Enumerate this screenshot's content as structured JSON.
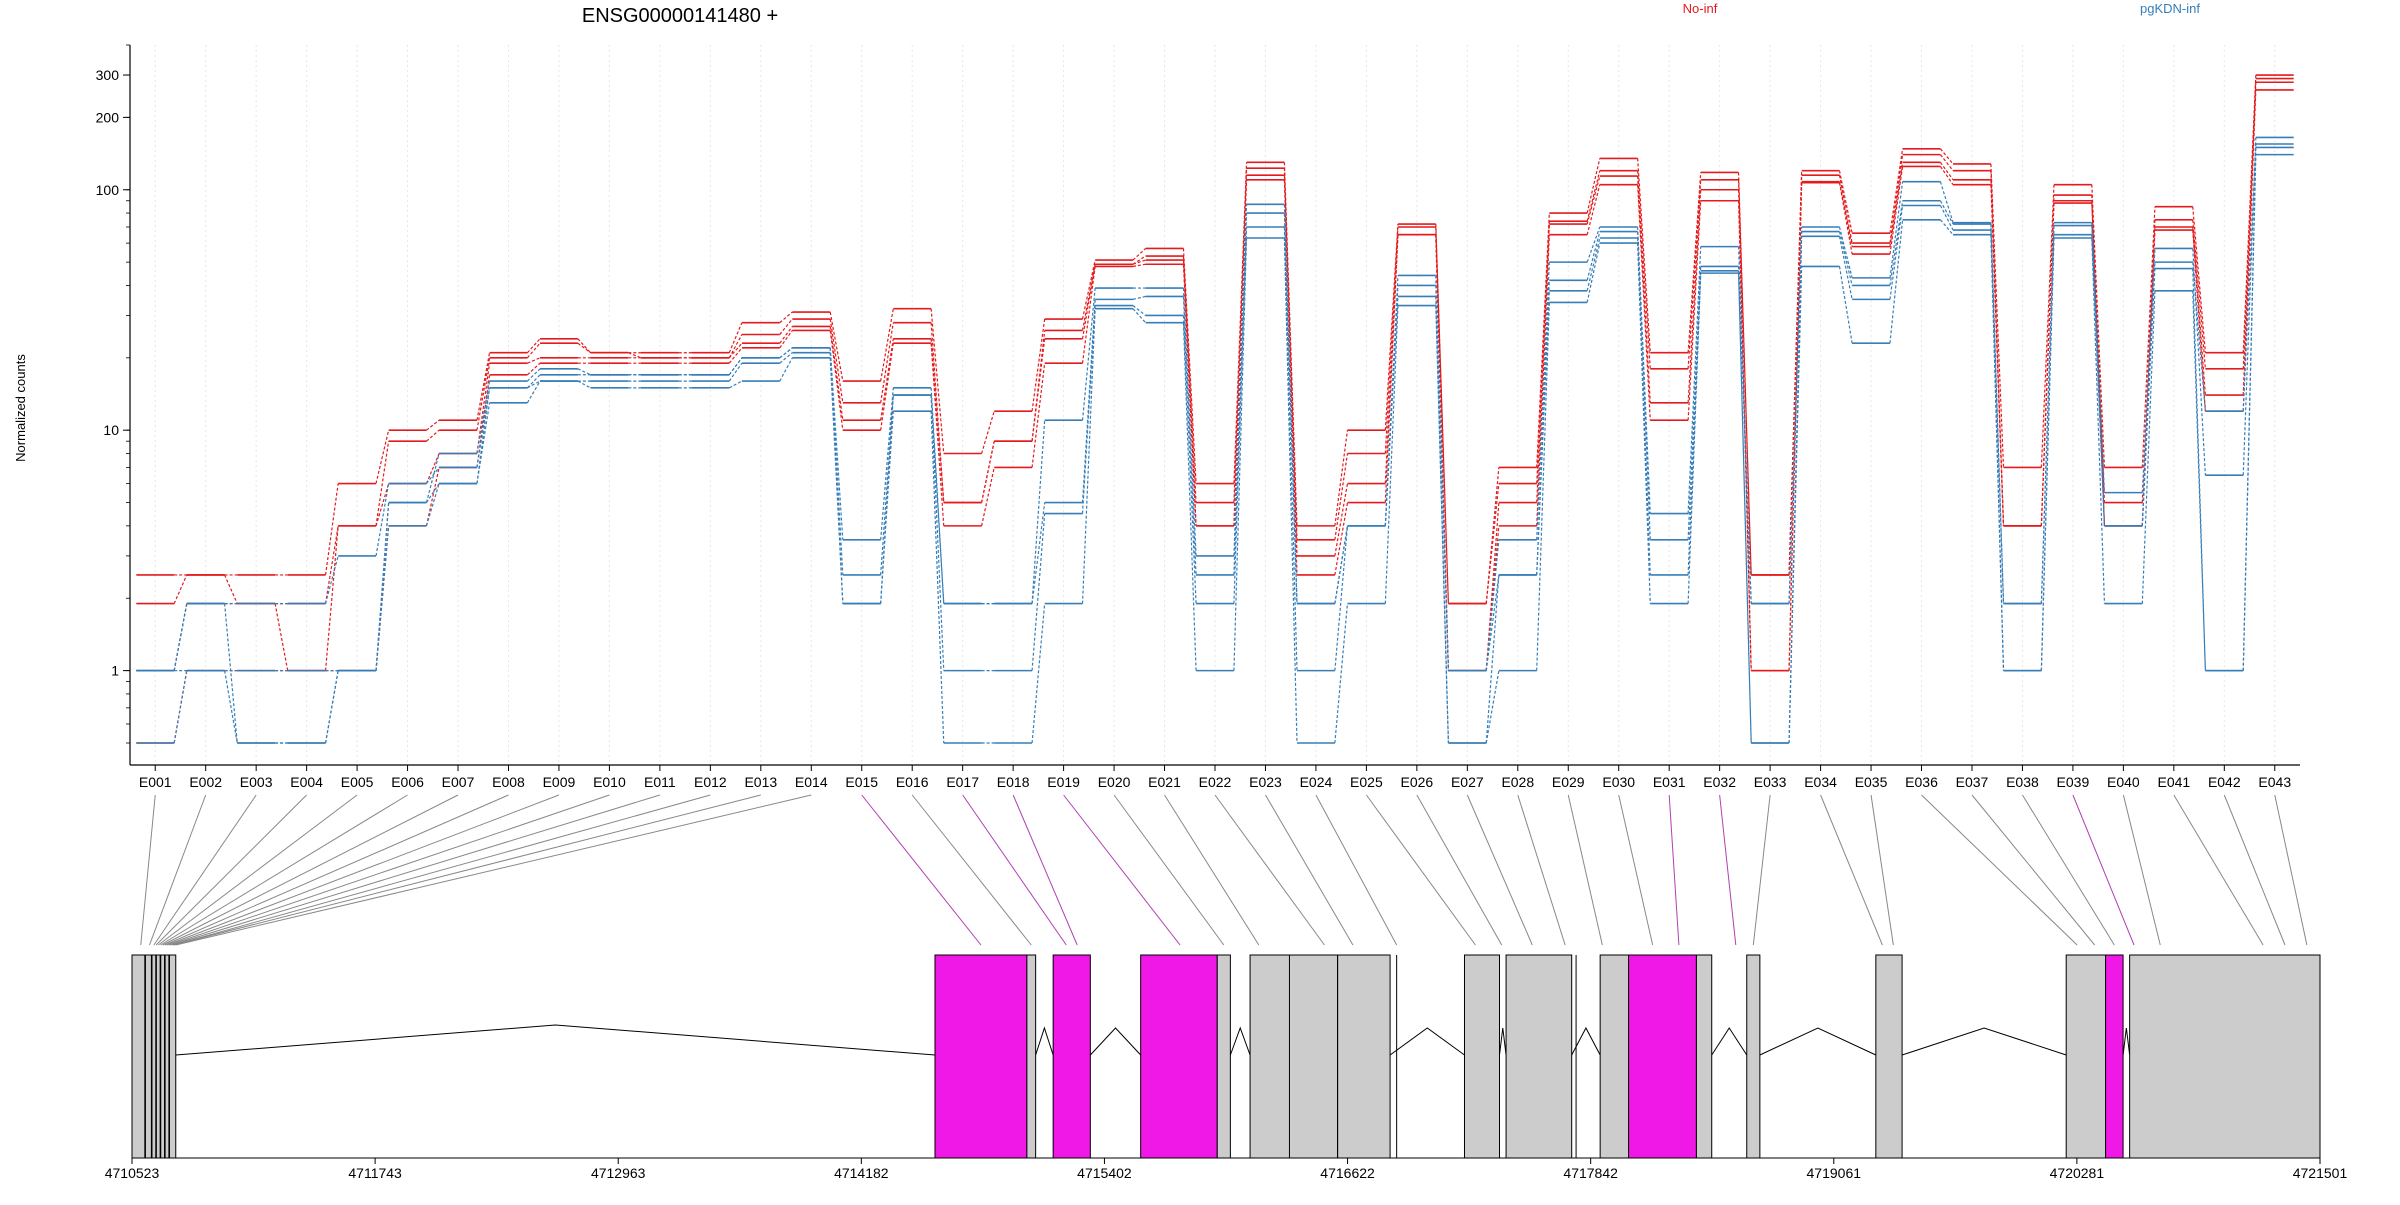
{
  "chart_data": {
    "type": "line",
    "title": "ENSG00000141480 +",
    "ylabel": "Normalized counts",
    "yscale": "log",
    "ylim": [
      0.5,
      400
    ],
    "yticks": [
      1,
      10,
      100,
      200,
      300
    ],
    "ytick_labels": [
      "1",
      "10",
      "100",
      "200",
      "300"
    ],
    "grid": "vertical dotted",
    "legend_placement": "top-right",
    "legend": [
      {
        "name": "No-inf",
        "color": "#e41a1c"
      },
      {
        "name": "pgKDN-inf",
        "color": "#377eb8"
      }
    ],
    "categories": [
      "E001",
      "E002",
      "E003",
      "E004",
      "E005",
      "E006",
      "E007",
      "E008",
      "E009",
      "E010",
      "E011",
      "E012",
      "E013",
      "E014",
      "E015",
      "E016",
      "E017",
      "E018",
      "E019",
      "E020",
      "E021",
      "E022",
      "E023",
      "E024",
      "E025",
      "E026",
      "E027",
      "E028",
      "E029",
      "E030",
      "E031",
      "E032",
      "E033",
      "E034",
      "E035",
      "E036",
      "E037",
      "E038",
      "E039",
      "E040",
      "E041",
      "E042",
      "E043"
    ],
    "highlighted_exons": [
      "E015",
      "E017",
      "E018",
      "E019",
      "E031",
      "E032",
      "E039"
    ],
    "series": [
      {
        "group": "No-inf",
        "color": "#e41a1c",
        "values": [
          2.5,
          2.5,
          2.5,
          2.5,
          6,
          10,
          11,
          21,
          24,
          21,
          21,
          21,
          28,
          31,
          16,
          32,
          8,
          12,
          29,
          51,
          57,
          6,
          130,
          4,
          10,
          72,
          1.9,
          7,
          80,
          135,
          21,
          118,
          2.5,
          120,
          66,
          148,
          128,
          7,
          105,
          7,
          85,
          21,
          300
        ]
      },
      {
        "group": "No-inf",
        "color": "#e41a1c",
        "values": [
          1.9,
          2.5,
          1.9,
          1.9,
          4,
          9,
          10,
          20,
          23,
          21,
          20,
          20,
          25,
          29,
          13,
          28,
          5,
          9,
          26,
          49,
          53,
          5,
          123,
          3.5,
          8,
          70,
          1.9,
          6,
          74,
          120,
          18,
          110,
          2.5,
          115,
          60,
          140,
          120,
          4,
          95,
          5,
          75,
          18,
          290
        ]
      },
      {
        "group": "No-inf",
        "color": "#e41a1c",
        "values": [
          1,
          1.9,
          1.9,
          1,
          4,
          6,
          8,
          19,
          20,
          20,
          20,
          20,
          23,
          27,
          11,
          24,
          5,
          9,
          24,
          49,
          51,
          4,
          115,
          3,
          6,
          65,
          1,
          5,
          72,
          114,
          13,
          100,
          1,
          108,
          58,
          130,
          110,
          4,
          90,
          4,
          70,
          14,
          280
        ]
      },
      {
        "group": "No-inf",
        "color": "#e41a1c",
        "values": [
          0.5,
          1,
          1,
          1,
          1,
          4,
          7,
          17,
          19,
          19,
          19,
          19,
          22,
          26,
          10,
          23,
          4,
          7,
          19,
          48,
          49,
          4,
          110,
          2.5,
          5,
          65,
          1,
          4,
          65,
          105,
          11,
          90,
          1,
          107,
          54,
          125,
          105,
          4,
          88,
          4,
          68,
          12,
          260
        ]
      },
      {
        "group": "pgKDN-inf",
        "color": "#377eb8",
        "values": [
          1,
          1.9,
          0.5,
          0.5,
          1,
          5,
          8,
          16,
          18,
          17,
          17,
          17,
          20,
          22,
          3.5,
          15,
          1.9,
          1.9,
          11,
          39,
          39,
          3,
          87,
          1.9,
          4,
          44,
          1,
          3.5,
          50,
          70,
          4.5,
          58,
          1.9,
          70,
          43,
          108,
          73,
          1.9,
          73,
          5.5,
          57,
          6.5,
          165
        ]
      },
      {
        "group": "pgKDN-inf",
        "color": "#377eb8",
        "values": [
          1,
          1.9,
          1.9,
          1.9,
          3,
          6,
          7,
          15,
          17,
          17,
          17,
          17,
          20,
          22,
          2.5,
          14,
          1.9,
          1.9,
          5,
          35,
          36,
          2.5,
          80,
          1.9,
          4,
          40,
          1,
          2.5,
          42,
          67,
          3.5,
          48,
          1.9,
          67,
          40,
          90,
          72,
          1.9,
          71,
          4,
          50,
          12,
          155
        ]
      },
      {
        "group": "pgKDN-inf",
        "color": "#377eb8",
        "values": [
          1,
          1,
          1,
          1,
          1,
          5,
          6,
          15,
          16,
          16,
          16,
          16,
          19,
          21,
          1.9,
          14,
          1,
          1,
          4.5,
          33,
          30,
          1.9,
          70,
          1,
          4,
          36,
          0.5,
          2.5,
          38,
          63,
          2.5,
          46,
          0.5,
          64,
          35,
          86,
          68,
          1,
          65,
          4,
          47,
          1,
          150
        ]
      },
      {
        "group": "pgKDN-inf",
        "color": "#377eb8",
        "values": [
          0.5,
          1,
          0.5,
          0.5,
          1,
          4,
          6,
          13,
          16,
          15,
          15,
          15,
          16,
          20,
          1.9,
          12,
          0.5,
          0.5,
          1.9,
          32,
          28,
          1,
          63,
          0.5,
          1.9,
          33,
          0.5,
          1,
          34,
          60,
          1.9,
          45,
          0.5,
          48,
          23,
          75,
          65,
          1,
          63,
          1.9,
          38,
          1,
          140
        ]
      }
    ],
    "gene_model": {
      "axis_ticks": [
        "4710523",
        "4711743",
        "4712963",
        "4714182",
        "4715402",
        "4716622",
        "4717842",
        "4719061",
        "4720281",
        "4721501"
      ]
    }
  }
}
